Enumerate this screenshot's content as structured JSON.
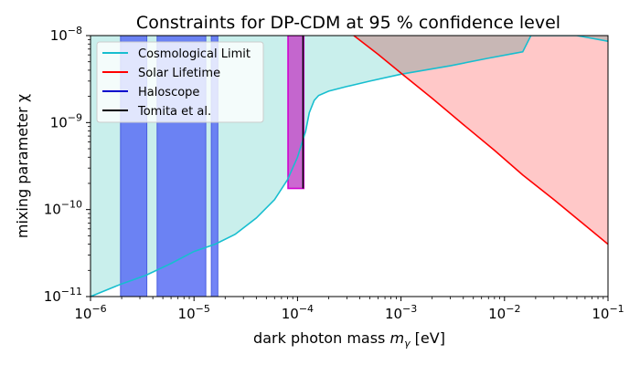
{
  "chart_data": {
    "type": "area",
    "title": "Constraints for DP-CDM at 95 % confidence level",
    "xlabel": "dark photon mass m_γ [eV]",
    "ylabel": "mixing parameter χ",
    "x_scale": "log",
    "y_scale": "log",
    "xlim": [
      1e-06,
      0.1
    ],
    "ylim": [
      1e-11,
      1e-08
    ],
    "x_ticks": [
      {
        "value": 1e-06,
        "base": "10",
        "exp": "−6"
      },
      {
        "value": 1e-05,
        "base": "10",
        "exp": "−5"
      },
      {
        "value": 0.0001,
        "base": "10",
        "exp": "−4"
      },
      {
        "value": 0.001,
        "base": "10",
        "exp": "−3"
      },
      {
        "value": 0.01,
        "base": "10",
        "exp": "−2"
      },
      {
        "value": 0.1,
        "base": "10",
        "exp": "−1"
      }
    ],
    "y_ticks": [
      {
        "value": 1e-11,
        "base": "10",
        "exp": "−11"
      },
      {
        "value": 1e-10,
        "base": "10",
        "exp": "−10"
      },
      {
        "value": 1e-09,
        "base": "10",
        "exp": "−9"
      },
      {
        "value": 1e-08,
        "base": "10",
        "exp": "−8"
      }
    ],
    "legend_position": "upper-left",
    "series": [
      {
        "name": "Cosmological Limit",
        "color": "#17becf",
        "fill": "#c9efec",
        "shade": "above",
        "x": [
          1e-06,
          2e-06,
          3.4e-06,
          6e-06,
          1e-05,
          1.6e-05,
          2.5e-05,
          4e-05,
          6e-05,
          8e-05,
          0.0001,
          0.00012,
          0.00013,
          0.000145,
          0.00016,
          0.0002,
          0.0003,
          0.0005,
          0.001,
          0.003,
          0.007,
          0.012,
          0.015,
          0.018,
          0.05,
          0.1
        ],
        "y": [
          1e-11,
          1.4e-11,
          1.75e-11,
          2.4e-11,
          3.3e-11,
          4e-11,
          5.2e-11,
          8e-11,
          1.3e-10,
          2.2e-10,
          4e-10,
          8e-10,
          1.3e-09,
          1.8e-09,
          2.05e-09,
          2.3e-09,
          2.6e-09,
          3e-09,
          3.6e-09,
          4.5e-09,
          5.5e-09,
          6.2e-09,
          6.5e-09,
          1e-08,
          1e-08,
          8.6e-09
        ]
      },
      {
        "name": "Solar Lifetime",
        "color": "#ff0000",
        "fill": "#ffc8c8",
        "shade": "above",
        "x": [
          0.00035,
          0.0006,
          0.001,
          0.002,
          0.004,
          0.008,
          0.015,
          0.03,
          0.06,
          0.1
        ],
        "y": [
          1e-08,
          6.1e-09,
          3.7e-09,
          1.9e-09,
          9.5e-10,
          4.8e-10,
          2.5e-10,
          1.3e-10,
          6.6e-11,
          4e-11
        ]
      },
      {
        "name": "Haloscope",
        "color": "#0000cc",
        "fill": "#5a6ef5",
        "regions": [
          {
            "xmin": 1.95e-06,
            "xmax": 3.5e-06
          },
          {
            "xmin": 4.4e-06,
            "xmax": 1.3e-05
          },
          {
            "xmin": 1.47e-05,
            "xmax": 1.7e-05
          }
        ]
      },
      {
        "name": "Tomita et al.",
        "color": "#000000",
        "fill": "#c34ec9",
        "edge": "#d000d0",
        "box": {
          "xmin": 8.1e-05,
          "xmax": 0.000115,
          "ymin": 1.75e-10,
          "ymax": 1e-08
        },
        "line_x": 0.000113
      }
    ]
  }
}
